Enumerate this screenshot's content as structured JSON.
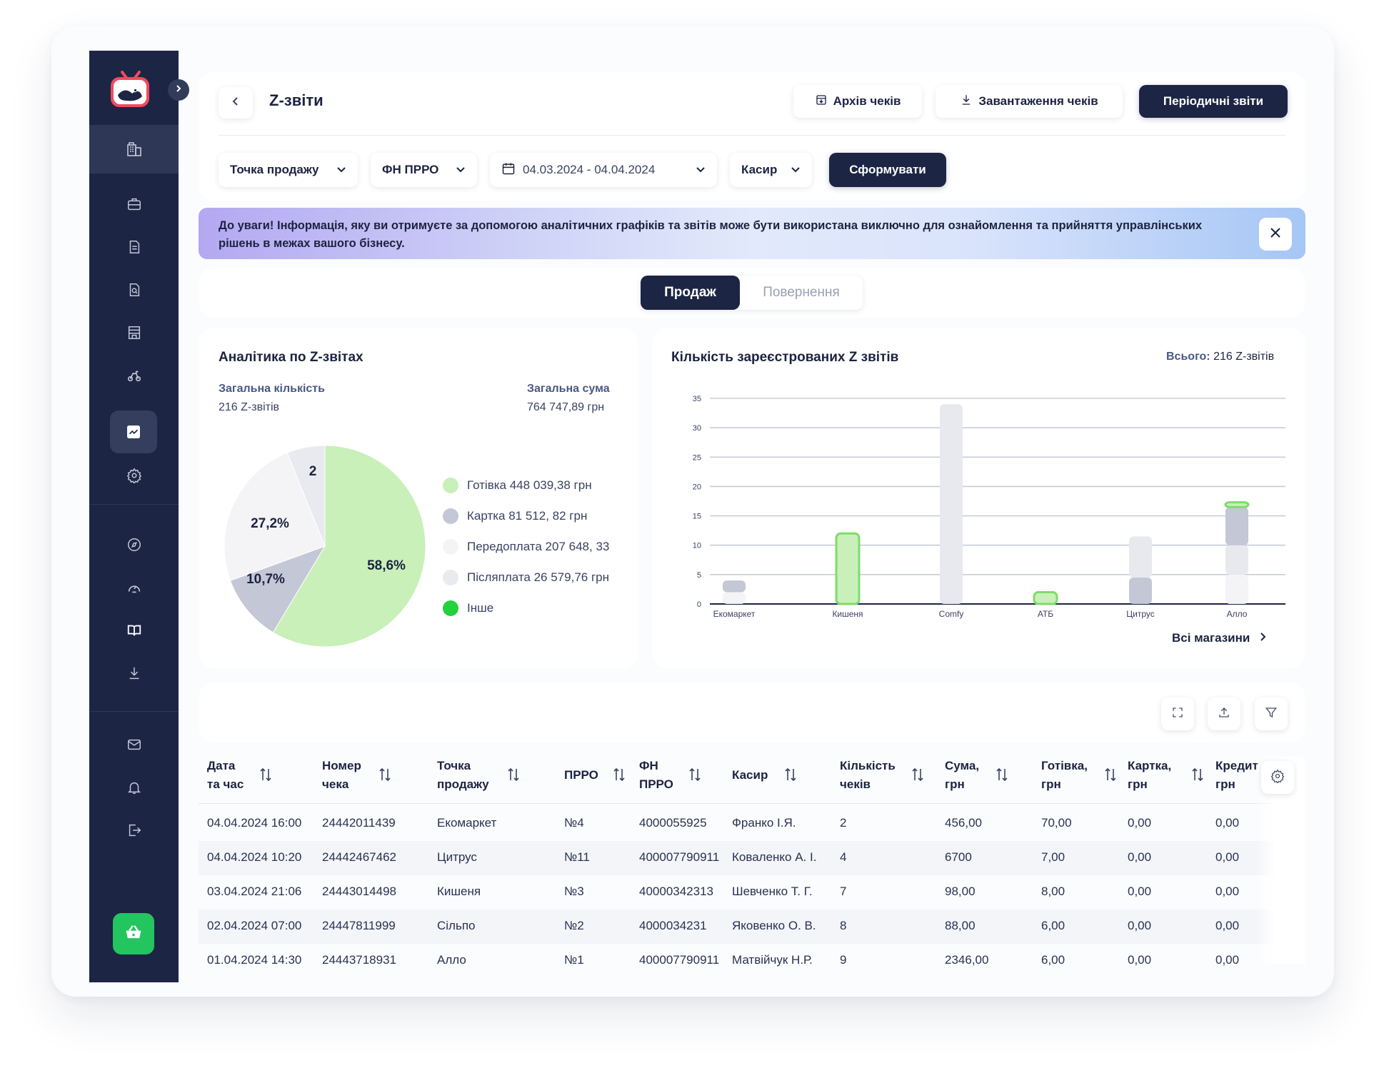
{
  "header": {
    "title": "Z-звіти",
    "archive_label": "Архів чеків",
    "download_label": "Завантаження чеків",
    "periodic_label": "Періодичні звіти"
  },
  "filters": {
    "point_of_sale": "Точка продажу",
    "fn_prro": "ФН ПРРО",
    "date_range": "04.03.2024 - 04.04.2024",
    "cashier": "Касир",
    "submit": "Сформувати"
  },
  "banner": {
    "text": "До уваги! Інформація, яку ви отримуєте за допомогою аналітичних графіків та звітів може бути використана виключно для ознайомлення та прийняття управлінських рішень в межах вашого бізнесу."
  },
  "tabs": {
    "active": "Продаж",
    "inactive": "Повернення"
  },
  "pie_card": {
    "title": "Аналітика по Z-звітах",
    "total_count_label": "Загальна кількість",
    "total_count_value": "216 Z-звітів",
    "total_sum_label": "Загальна сума",
    "total_sum_value": "764 747,89 грн",
    "slice_labels": [
      "58,6%",
      "10,7%",
      "27,2%",
      "2"
    ],
    "legend": [
      {
        "label": "Готівка 448 039,38 грн",
        "color": "#c8f0b8"
      },
      {
        "label": "Картка 81 512, 82 грн",
        "color": "#c3c7d6"
      },
      {
        "label": "Передоплата 207 648, 33",
        "color": "#f4f4f7"
      },
      {
        "label": "Післяплата 26 579,76 грн",
        "color": "#e9eaf0"
      },
      {
        "label": "Інше",
        "color": "#22d23a"
      }
    ]
  },
  "bar_card": {
    "title": "Кількість зареєстрованих Z звітів",
    "total_label": "Всього:",
    "total_value": "216 Z-звітів",
    "all_stores": "Всі магазини"
  },
  "chart_data": {
    "type": "bar",
    "categories": [
      "Екомаркет",
      "Кишеня",
      "Comfy",
      "АТБ",
      "Цитрус",
      "Алло"
    ],
    "series": [
      {
        "values": [
          2,
          0,
          0,
          0,
          0,
          5
        ],
        "color": "#f4f4f7"
      },
      {
        "values": [
          0,
          0,
          34,
          0,
          0,
          5
        ],
        "color": "#e8e9ef"
      },
      {
        "values": [
          2,
          0,
          0,
          0,
          4.5,
          6.5
        ],
        "color": "#c3c7d6"
      },
      {
        "values": [
          0,
          0,
          0,
          0,
          7,
          0
        ],
        "color": "#e8e9ef"
      },
      {
        "values": [
          0,
          12,
          0,
          2,
          0,
          0.8
        ],
        "color": "#c8f0b8"
      }
    ],
    "ylim": [
      0,
      35
    ],
    "yticks": [
      0,
      5,
      10,
      15,
      20,
      25,
      30,
      35
    ],
    "grid": true
  },
  "table": {
    "headers": [
      [
        "Дата",
        "та час"
      ],
      [
        "Номер",
        "чека"
      ],
      [
        "Точка",
        "продажу"
      ],
      [
        "ПРРО"
      ],
      [
        "ФН",
        "ПРРО"
      ],
      [
        "Касир"
      ],
      [
        "Кількість",
        "чеків"
      ],
      [
        "Сума,",
        "грн"
      ],
      [
        "Готівка,",
        "грн"
      ],
      [
        "Картка,",
        "грн"
      ],
      [
        "Кредит",
        "грн"
      ]
    ],
    "rows": [
      [
        "04.04.2024 16:00",
        "24442011439",
        "Екомаркет",
        "№4",
        "4000055925",
        "Франко І.Я.",
        "2",
        "456,00",
        "70,00",
        "0,00",
        "0,00"
      ],
      [
        "04.04.2024 10:20",
        "24442467462",
        "Цитрус",
        "№11",
        "400007790911",
        "Коваленко А. І.",
        "4",
        "6700",
        "7,00",
        "0,00",
        "0,00"
      ],
      [
        "03.04.2024 21:06",
        "24443014498",
        "Кишеня",
        "№3",
        "40000342313",
        "Шевченко Т. Г.",
        "7",
        "98,00",
        "8,00",
        "0,00",
        "0,00"
      ],
      [
        "02.04.2024 07:00",
        "24447811999",
        "Сільпо",
        "№2",
        "4000034231",
        "Яковенко О. В.",
        "8",
        "88,00",
        "6,00",
        "0,00",
        "0,00"
      ],
      [
        "01.04.2024 14:30",
        "24443718931",
        "Алло",
        "№1",
        "400007790911",
        "Матвійчук Н.Р.",
        "9",
        "2346,00",
        "6,00",
        "0,00",
        "0,00"
      ]
    ]
  },
  "colors": {
    "navy": "#1c2543",
    "green": "#22c55e",
    "accent_text": "#4a5785"
  }
}
